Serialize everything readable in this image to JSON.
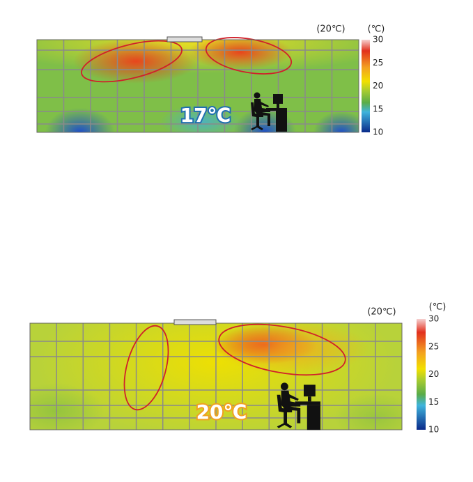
{
  "panels": [
    {
      "setpoint_label": "(20℃)",
      "unit_label": "(℃)",
      "scale_ticks": [
        30,
        25,
        20,
        15,
        10
      ],
      "temperature_label": "17℃"
    },
    {
      "setpoint_label": "(20℃)",
      "unit_label": "(℃)",
      "scale_ticks": [
        30,
        25,
        20,
        15,
        10
      ],
      "temperature_label": "20℃"
    }
  ]
}
